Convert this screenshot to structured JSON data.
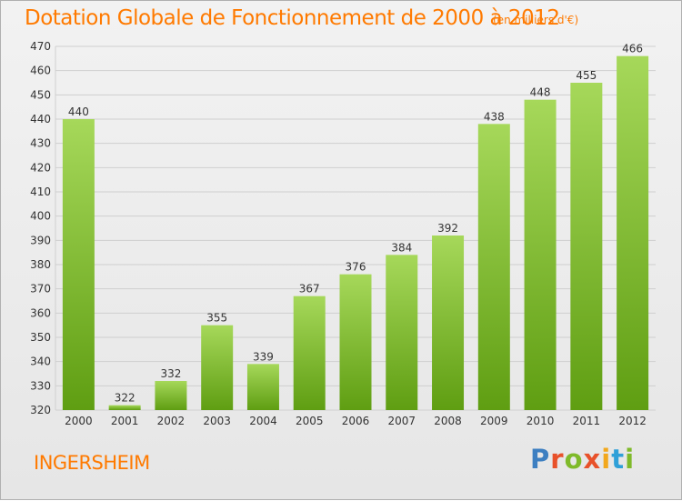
{
  "title": "Dotation Globale de Fonctionnement de 2000 à 2012",
  "unit_note": "(en milliers d'€)",
  "commune": "INGERSHEIM",
  "logo": {
    "text": "Proxiti",
    "letter_colors": [
      "#3d7fc1",
      "#e8512a",
      "#7fba2a",
      "#e8512a",
      "#f2a81d",
      "#2fa0d8",
      "#7fba2a"
    ]
  },
  "colors": {
    "title": "#ff7a00",
    "bar_top": "#a6d85a",
    "bar_bottom": "#5f9e12",
    "grid": "#cfcfcf",
    "axis_text": "#333333"
  },
  "chart_data": {
    "type": "bar",
    "title": "Dotation Globale de Fonctionnement de 2000 à 2012",
    "subtitle": "(en milliers d'€)",
    "categories": [
      "2000",
      "2001",
      "2002",
      "2003",
      "2004",
      "2005",
      "2006",
      "2007",
      "2008",
      "2009",
      "2010",
      "2011",
      "2012"
    ],
    "values": [
      440,
      322,
      332,
      355,
      339,
      367,
      376,
      384,
      392,
      438,
      448,
      455,
      466
    ],
    "ylim": [
      320,
      470
    ],
    "yticks": [
      320,
      330,
      340,
      350,
      360,
      370,
      380,
      390,
      400,
      410,
      420,
      430,
      440,
      450,
      460,
      470
    ],
    "grid": true,
    "data_labels": true,
    "legend": "none"
  }
}
